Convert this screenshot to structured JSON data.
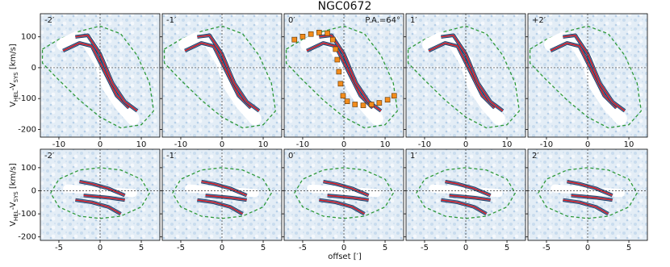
{
  "chart_data": {
    "type": "pv",
    "title": "NGC0672",
    "xlabel": "offset [′]",
    "ylabel_parts": [
      "V",
      "HEL",
      "-V",
      "SYS",
      " [km/s]"
    ],
    "rows": [
      {
        "xlim": [
          -14.5,
          14.5
        ],
        "ylim": [
          -225,
          175
        ],
        "xticks": [
          -10,
          0,
          10
        ],
        "yticks": [
          -200,
          -100,
          0,
          100
        ],
        "panels": [
          {
            "label": "-2′"
          },
          {
            "label": "-1′"
          },
          {
            "label": "0′",
            "annotation": "P.A.=64°",
            "series": [
              {
                "color": "#f28c1c",
                "x": [
                  -12,
                  -10,
                  -8,
                  -6,
                  -4,
                  -2.7,
                  -2,
                  -1.6,
                  -1.2,
                  -0.8,
                  -0.2,
                  0.8,
                  2.7,
                  4.7,
                  6.7,
                  8.6,
                  10.6,
                  12.2
                ],
                "values": [
                  91,
                  101,
                  109,
                  114,
                  112,
                  91,
                  60,
                  26,
                  -13,
                  -52,
                  -91,
                  -109,
                  -119,
                  -122,
                  -119,
                  -114,
                  -104,
                  -91
                ]
              }
            ]
          },
          {
            "label": "1′"
          },
          {
            "label": "+2′"
          }
        ]
      },
      {
        "xlim": [
          -7.25,
          7.25
        ],
        "ylim": [
          -215,
          180
        ],
        "xticks": [
          -5,
          0,
          5
        ],
        "yticks": [
          -200,
          -100,
          0,
          100
        ],
        "panels": [
          {
            "label": "-2′"
          },
          {
            "label": "-1′"
          },
          {
            "label": "0′"
          },
          {
            "label": "1′"
          },
          {
            "label": "2′"
          }
        ]
      }
    ]
  }
}
